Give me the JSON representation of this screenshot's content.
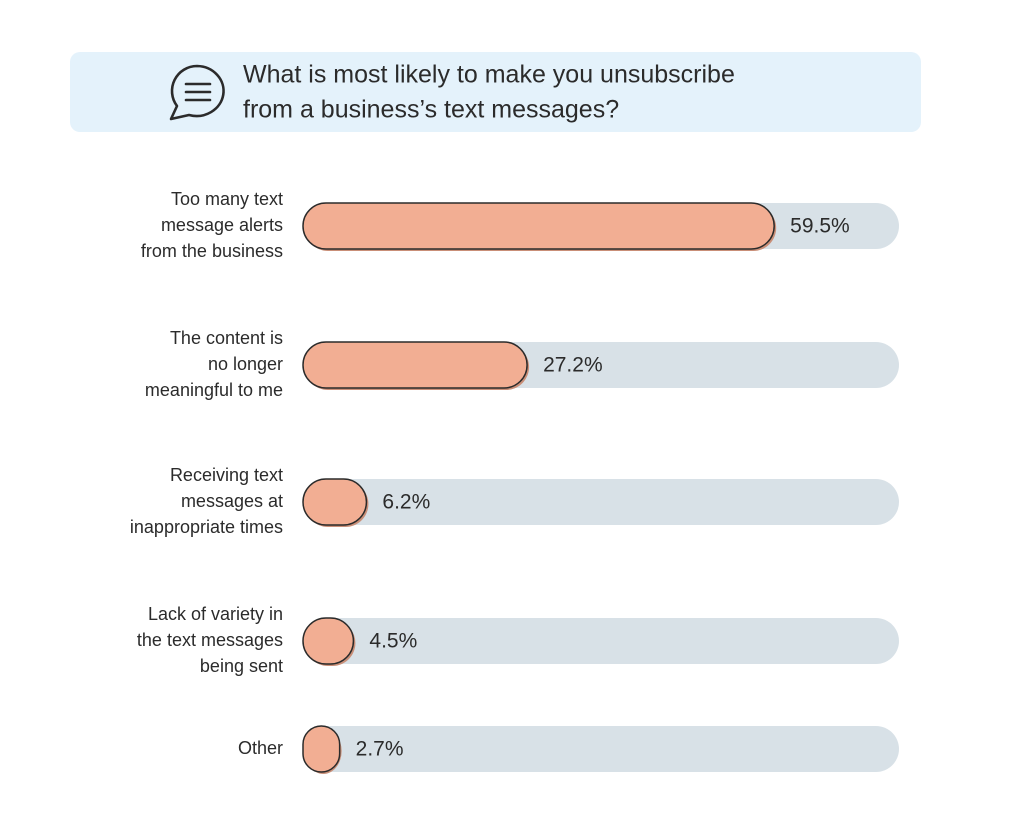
{
  "chart_data": {
    "type": "hbar",
    "title": [
      "What is most likely to make you unsubscribe",
      "from a business’s text messages?"
    ],
    "categories": [
      [
        "Too many text",
        "message alerts",
        "from the business"
      ],
      [
        "The content is",
        "no longer",
        "meaningful to me"
      ],
      [
        "Receiving text",
        "messages at",
        "inappropriate times"
      ],
      [
        "Lack of variety in",
        "the text messages",
        "being sent"
      ],
      [
        "Other"
      ]
    ],
    "values": [
      59.5,
      27.2,
      6.2,
      4.5,
      2.7
    ],
    "value_labels": [
      "59.5%",
      "27.2%",
      "6.2%",
      "4.5%",
      "2.7%"
    ],
    "color": "#f2ae93",
    "track_color": "#d8e1e7"
  }
}
